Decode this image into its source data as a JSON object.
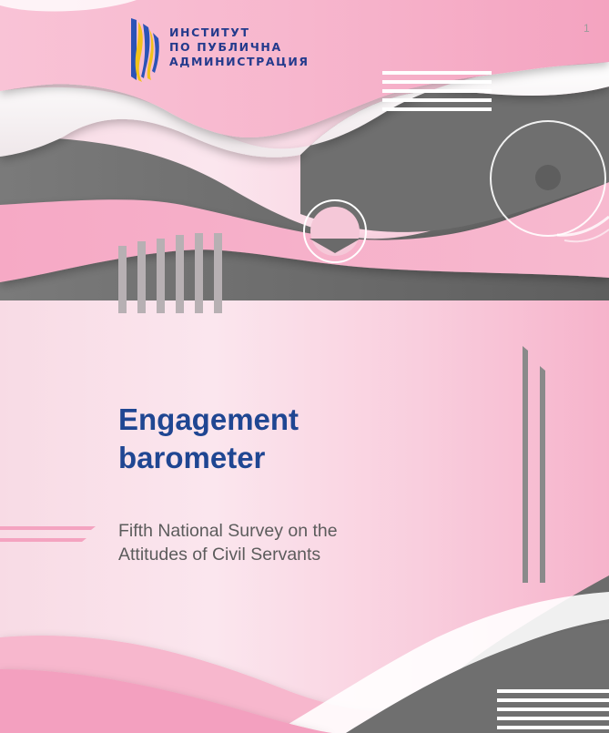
{
  "logo": {
    "line1": "ИНСТИТУТ",
    "line2": "ПО ПУБЛИЧНА",
    "line3": "АДМИНИСТРАЦИЯ"
  },
  "page_number": "1",
  "cover": {
    "title_line1": "Engagement",
    "title_line2": "barometer",
    "subtitle_line1": "Fifth National Survey on the",
    "subtitle_line2": "Attitudes of Civil Servants"
  },
  "colors": {
    "title": "#1f4692",
    "subtitle": "#5c5c5c",
    "pink_light": "#f8dbe5",
    "pink_strong": "#f6a3c2",
    "grey_wave": "#6e6e6e",
    "logo_blue": "#233a8c",
    "logo_yellow": "#f2c21b"
  }
}
